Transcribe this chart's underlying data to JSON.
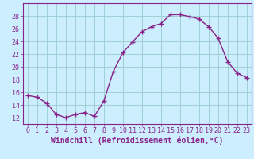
{
  "x": [
    0,
    1,
    2,
    3,
    4,
    5,
    6,
    7,
    8,
    9,
    10,
    11,
    12,
    13,
    14,
    15,
    16,
    17,
    18,
    19,
    20,
    21,
    22,
    23
  ],
  "y": [
    15.5,
    15.2,
    14.3,
    12.5,
    12.0,
    12.5,
    12.8,
    12.2,
    14.6,
    19.3,
    22.2,
    23.9,
    25.5,
    26.3,
    26.8,
    28.2,
    28.2,
    27.9,
    27.5,
    26.3,
    24.5,
    20.8,
    19.0,
    18.3
  ],
  "line_color": "#882288",
  "marker": "+",
  "markersize": 4,
  "linewidth": 1.0,
  "xlabel": "Windchill (Refroidissement éolien,°C)",
  "xlabel_fontsize": 7,
  "ylabel_ticks": [
    12,
    14,
    16,
    18,
    20,
    22,
    24,
    26,
    28
  ],
  "ylim": [
    11,
    30
  ],
  "xlim": [
    -0.5,
    23.5
  ],
  "xtick_labels": [
    "0",
    "1",
    "2",
    "3",
    "4",
    "5",
    "6",
    "7",
    "8",
    "9",
    "10",
    "11",
    "12",
    "13",
    "14",
    "15",
    "16",
    "17",
    "18",
    "19",
    "20",
    "21",
    "22",
    "23"
  ],
  "background_color": "#cceeff",
  "grid_color": "#99cccc",
  "tick_color": "#882288",
  "tick_fontsize": 6,
  "label_color": "#882288"
}
